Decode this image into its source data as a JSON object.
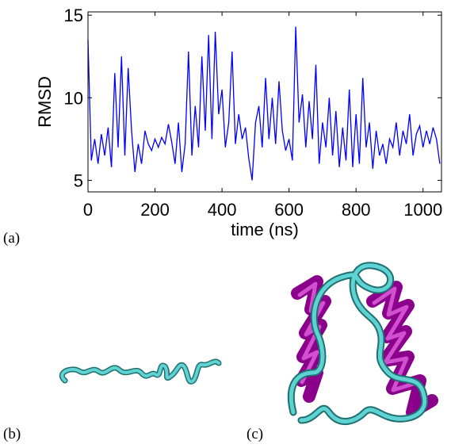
{
  "chart_data": {
    "type": "line",
    "x_label": "time (ns)",
    "y_label": "RMSD",
    "xlim": [
      0,
      1055
    ],
    "ylim": [
      4.3,
      15.2
    ],
    "xticks": [
      0,
      200,
      400,
      600,
      800,
      1000
    ],
    "yticks": [
      5,
      10,
      15
    ],
    "series": [
      {
        "color": "#0000ff",
        "x": [
          0,
          10,
          20,
          30,
          40,
          50,
          60,
          70,
          80,
          90,
          100,
          110,
          120,
          130,
          140,
          150,
          160,
          170,
          180,
          190,
          200,
          210,
          220,
          230,
          240,
          250,
          260,
          270,
          280,
          290,
          300,
          310,
          320,
          330,
          340,
          350,
          360,
          370,
          380,
          390,
          400,
          410,
          420,
          430,
          440,
          450,
          460,
          470,
          480,
          490,
          500,
          510,
          520,
          530,
          540,
          550,
          560,
          570,
          580,
          590,
          600,
          610,
          620,
          630,
          640,
          650,
          660,
          670,
          680,
          690,
          700,
          710,
          720,
          730,
          740,
          750,
          760,
          770,
          780,
          790,
          800,
          810,
          820,
          830,
          840,
          850,
          860,
          870,
          880,
          890,
          900,
          910,
          920,
          930,
          940,
          950,
          960,
          970,
          980,
          990,
          1000,
          1010,
          1020,
          1030,
          1040,
          1050
        ],
        "values": [
          13.5,
          6.2,
          7.5,
          6.0,
          7.8,
          6.5,
          8.2,
          5.8,
          11.5,
          7.0,
          12.5,
          6.5,
          11.8,
          8.0,
          5.5,
          7.2,
          6.0,
          8.0,
          7.2,
          6.8,
          7.5,
          7.0,
          7.6,
          7.2,
          8.4,
          7.3,
          6.0,
          8.5,
          5.5,
          7.2,
          12.8,
          6.5,
          9.5,
          7.0,
          12.5,
          8.0,
          13.8,
          7.5,
          14.0,
          9.0,
          10.5,
          7.0,
          8.5,
          12.8,
          7.2,
          9.0,
          7.5,
          8.2,
          6.3,
          5.0,
          8.5,
          9.5,
          7.0,
          11.2,
          7.5,
          10.0,
          7.2,
          11.0,
          8.0,
          6.8,
          7.5,
          6.2,
          14.3,
          8.5,
          10.2,
          7.0,
          9.8,
          7.5,
          12.0,
          6.0,
          8.5,
          7.0,
          10.0,
          6.5,
          9.2,
          5.8,
          8.2,
          6.2,
          10.5,
          5.8,
          9.0,
          6.0,
          11.2,
          7.0,
          8.5,
          5.7,
          8.0,
          6.5,
          7.2,
          6.0,
          7.5,
          7.0,
          8.5,
          6.5,
          8.0,
          7.2,
          9.0,
          6.5,
          7.8,
          8.3,
          7.0,
          8.0,
          7.2,
          8.2,
          7.5,
          6.0
        ]
      }
    ]
  },
  "panel_labels": [
    "(a)",
    "(b)",
    "(c)"
  ]
}
